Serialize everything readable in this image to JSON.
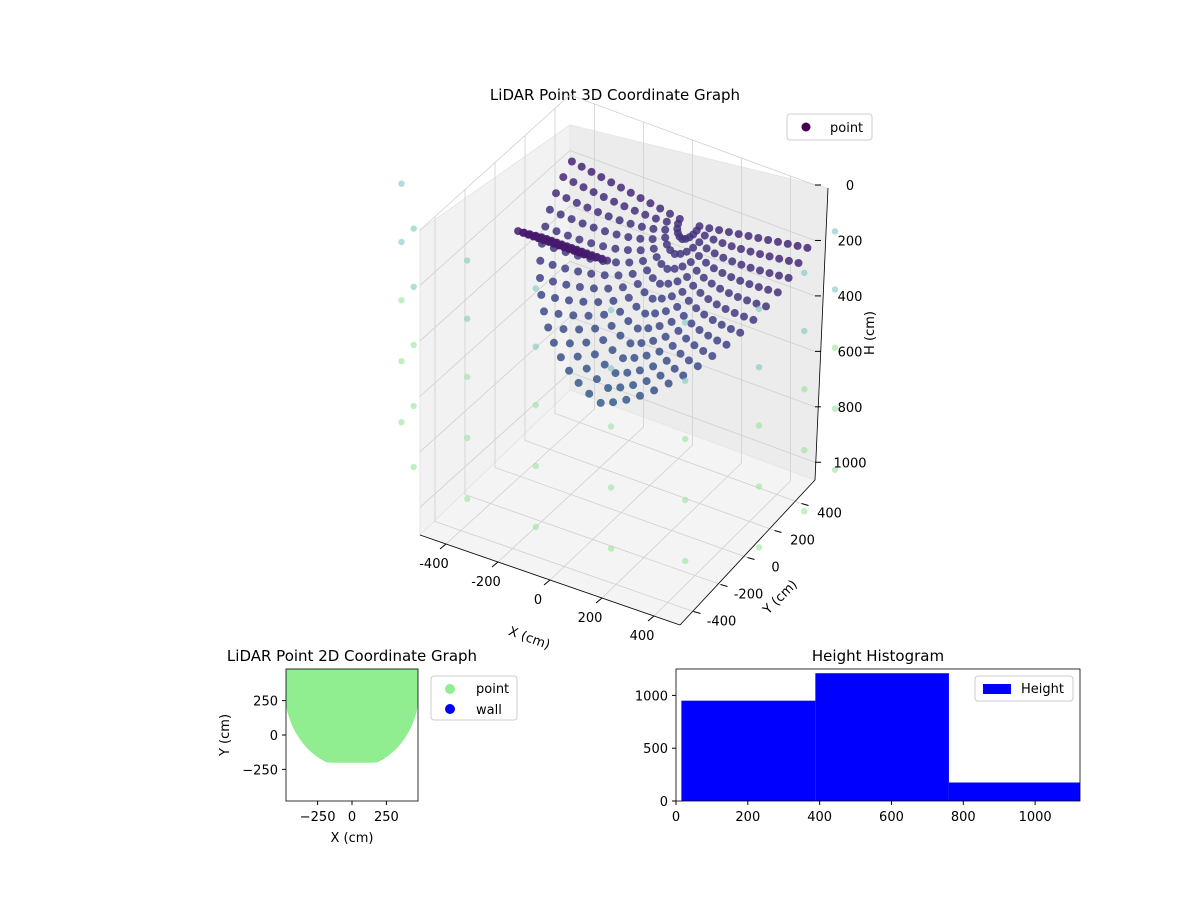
{
  "chart_data": [
    {
      "type": "scatter",
      "projection": "3d",
      "title": "LiDAR Point 3D Coordinate Graph",
      "xlabel": "X (cm)",
      "ylabel": "Y (cm)",
      "zlabel": "H (cm)",
      "xlim": [
        -500,
        500
      ],
      "ylim": [
        -500,
        500
      ],
      "zlim": [
        1100,
        0
      ],
      "xticks": [
        -400,
        -200,
        0,
        200,
        400
      ],
      "yticks": [
        -400,
        -200,
        0,
        200,
        400
      ],
      "zticks": [
        0,
        200,
        400,
        600,
        800,
        1000
      ],
      "grid": true,
      "legend": {
        "placement": "upper-right",
        "entries": [
          "point"
        ]
      },
      "colormap": "viridis",
      "series": [
        {
          "name": "point",
          "description": "Ceiling/bowl surface: polar grid of points, height grows from the far back edge toward the near front",
          "radial_rings_cm": [
            40,
            80,
            120,
            160,
            200,
            240,
            280,
            320,
            360,
            400,
            440,
            480
          ],
          "angle_range_deg": [
            0,
            180
          ],
          "height_range_cm": [
            0,
            840
          ]
        },
        {
          "name": "wall",
          "description": "Sparse light teal/green wall markers around the perimeter",
          "color_top": "#7fc8c0",
          "color_bottom": "#9be39b",
          "columns": [
            {
              "x": -480,
              "y": -240
            },
            {
              "x": -360,
              "y": -420
            },
            {
              "x": -190,
              "y": -480
            },
            {
              "x": 0,
              "y": -500
            },
            {
              "x": 190,
              "y": -480
            },
            {
              "x": 360,
              "y": -420
            },
            {
              "x": 480,
              "y": -240
            },
            {
              "x": 500,
              "y": 0
            },
            {
              "x": 480,
              "y": 240
            }
          ],
          "heights_cm": [
            0,
            210,
            420,
            640,
            860
          ]
        }
      ]
    },
    {
      "type": "scatter",
      "title": "LiDAR Point 2D Coordinate Graph",
      "xlabel": "X (cm)",
      "ylabel": "Y (cm)",
      "xlim": [
        -480,
        480
      ],
      "ylim": [
        -480,
        480
      ],
      "xticks": [
        -250,
        0,
        250
      ],
      "yticks": [
        -250,
        0,
        250
      ],
      "legend": {
        "placement": "outside-right",
        "entries": [
          "point",
          "wall"
        ]
      },
      "series": [
        {
          "name": "point",
          "color": "#90ee90",
          "region": "filled half-disk, radius ≈ 470, bottom edge near y = -180"
        },
        {
          "name": "wall",
          "color": "#0000ff",
          "values": []
        }
      ]
    },
    {
      "type": "bar",
      "title": "Height Histogram",
      "xlim": [
        0,
        1125
      ],
      "ylim": [
        0,
        1250
      ],
      "xticks": [
        0,
        200,
        400,
        600,
        800,
        1000
      ],
      "yticks": [
        0,
        500,
        1000
      ],
      "legend": {
        "placement": "upper-right",
        "entries": [
          "Height"
        ]
      },
      "color": "#0000ff",
      "series": [
        {
          "name": "Height",
          "bins": [
            {
              "from": 15,
              "to": 388,
              "count": 950
            },
            {
              "from": 388,
              "to": 760,
              "count": 1210
            },
            {
              "from": 760,
              "to": 1125,
              "count": 175
            }
          ]
        }
      ]
    }
  ]
}
